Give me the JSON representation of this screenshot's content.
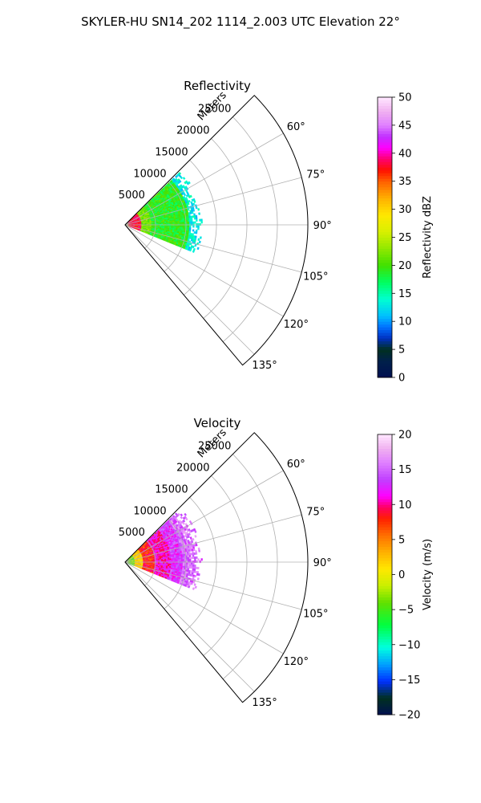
{
  "figure": {
    "suptitle": "SKYLER-HU  SN14_202  1114_2.003 UTC Elevation 22°"
  },
  "chart_data": [
    {
      "type": "heatmap",
      "projection": "polar-sector",
      "title": "Reflectivity",
      "radial_label": "Meters",
      "radial_ticks": [
        "5000",
        "10000",
        "15000",
        "20000",
        "25000"
      ],
      "radial_tick_values": [
        5000,
        10000,
        15000,
        20000,
        25000
      ],
      "rlim": [
        0,
        30000
      ],
      "azimuth_ticks": [
        "60°",
        "75°",
        "90°",
        "105°",
        "120°",
        "135°"
      ],
      "azimuth_tick_values": [
        60,
        75,
        90,
        105,
        120,
        135
      ],
      "azimuth_range": [
        45,
        140
      ],
      "grid": true,
      "data_extent": {
        "range_max_m": 13000,
        "azimuth_min": 46,
        "azimuth_max": 112
      },
      "colorbar": {
        "label": "Reflectivity dBZ",
        "range": [
          0,
          50
        ],
        "ticks": [
          "0",
          "5",
          "10",
          "15",
          "20",
          "25",
          "30",
          "35",
          "40",
          "45",
          "50"
        ],
        "tick_values": [
          0,
          5,
          10,
          15,
          20,
          25,
          30,
          35,
          40,
          45,
          50
        ],
        "colormap": "pyart_NWSRef"
      },
      "field_bands": [
        {
          "r_min": 0,
          "r_max": 600,
          "value": 27
        },
        {
          "r_min": 600,
          "r_max": 2600,
          "value": 38
        },
        {
          "r_min": 2600,
          "r_max": 4200,
          "value": 22
        },
        {
          "r_min": 4200,
          "r_max": 10500,
          "value": 19
        },
        {
          "r_min": 10500,
          "r_max": 13000,
          "value": 13
        }
      ]
    },
    {
      "type": "heatmap",
      "projection": "polar-sector",
      "title": "Velocity",
      "radial_label": "Meters",
      "radial_ticks": [
        "5000",
        "10000",
        "15000",
        "20000",
        "25000"
      ],
      "radial_tick_values": [
        5000,
        10000,
        15000,
        20000,
        25000
      ],
      "rlim": [
        0,
        30000
      ],
      "azimuth_ticks": [
        "60°",
        "75°",
        "90°",
        "105°",
        "120°",
        "135°"
      ],
      "azimuth_tick_values": [
        60,
        75,
        90,
        105,
        120,
        135
      ],
      "azimuth_range": [
        45,
        140
      ],
      "grid": true,
      "data_extent": {
        "range_max_m": 13000,
        "azimuth_min": 46,
        "azimuth_max": 112
      },
      "colorbar": {
        "label": "Velocity (m/s)",
        "range": [
          -20,
          20
        ],
        "ticks": [
          "−20",
          "−15",
          "−10",
          "−5",
          "0",
          "5",
          "10",
          "15",
          "20"
        ],
        "tick_values": [
          -20,
          -15,
          -10,
          -5,
          0,
          5,
          10,
          15,
          20
        ],
        "colormap": "pyart_BuDRd18"
      },
      "field_bands": [
        {
          "r_min": 0,
          "r_max": 1500,
          "value": -4
        },
        {
          "r_min": 1500,
          "r_max": 3000,
          "value": 2
        },
        {
          "r_min": 3000,
          "r_max": 5000,
          "value": 8
        },
        {
          "r_min": 5000,
          "r_max": 7500,
          "value": 11
        },
        {
          "r_min": 7500,
          "r_max": 9500,
          "value": 13
        },
        {
          "r_min": 9500,
          "r_max": 13000,
          "value": 15
        }
      ]
    }
  ]
}
